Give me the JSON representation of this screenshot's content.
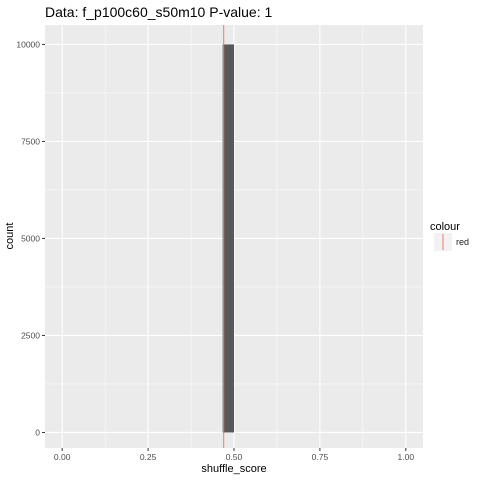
{
  "chart_data": {
    "type": "bar",
    "title": "Data: f_p100c60_s50m10      P-value: 1",
    "xlabel": "shuffle_score",
    "ylabel": "count",
    "xlim": [
      -0.05,
      1.05
    ],
    "ylim": [
      -400,
      10500
    ],
    "x_ticks": [
      0,
      0.25,
      0.5,
      0.75,
      1
    ],
    "x_tick_labels": [
      "0.00",
      "0.25",
      "0.50",
      "0.75",
      "1.00"
    ],
    "y_ticks": [
      0,
      2500,
      5000,
      7500,
      10000
    ],
    "y_tick_labels": [
      "0",
      "2500",
      "5000",
      "7500",
      "10000"
    ],
    "bins": [
      {
        "x0": 0.467,
        "x1": 0.5,
        "count": 10000
      }
    ],
    "reference_line": {
      "x": 0.47,
      "color": "#F8766D",
      "label": "red"
    },
    "legend": {
      "title": "colour",
      "items": [
        "red"
      ],
      "placement": "right"
    },
    "bar_color": "#595959",
    "panel_color": "#EBEBEB",
    "grid": true
  }
}
